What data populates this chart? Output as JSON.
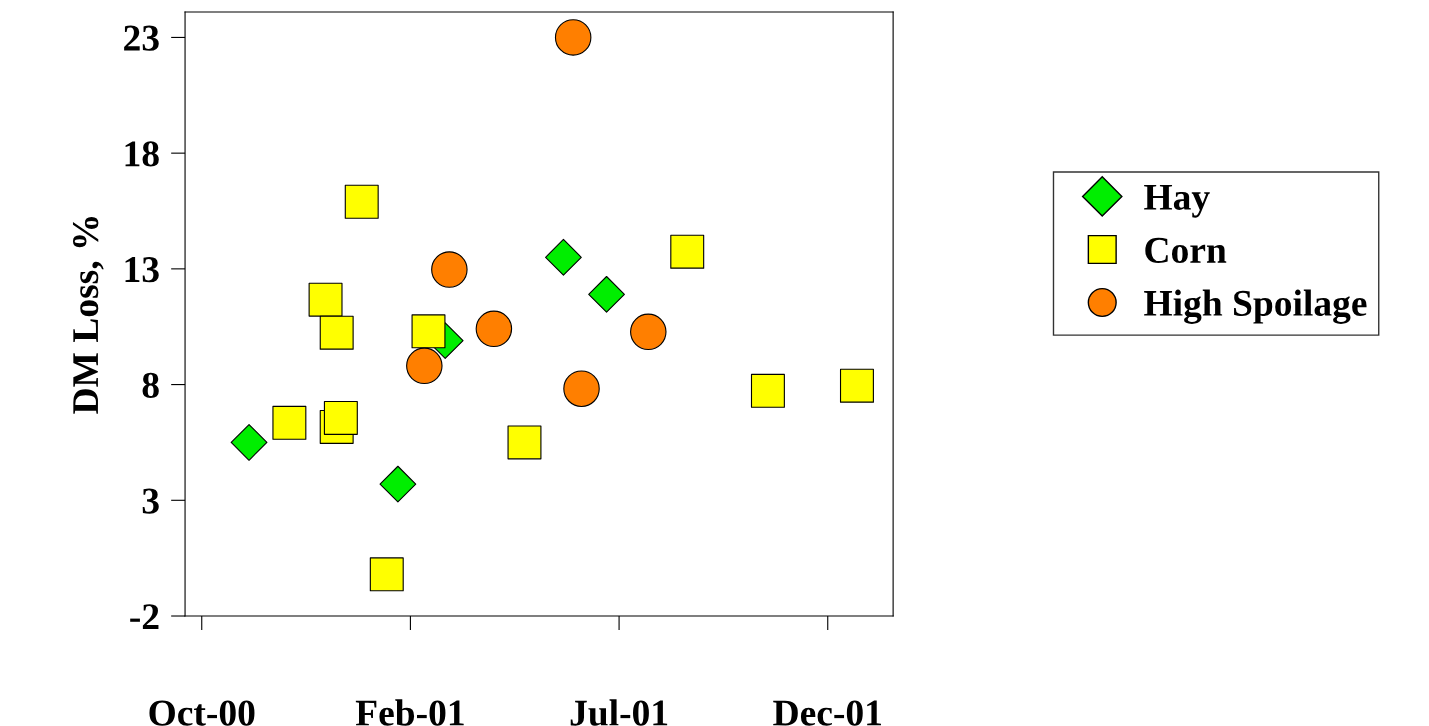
{
  "chart_data": {
    "type": "scatter",
    "ylabel": "DM Loss, %",
    "xlim": [
      "2000-09-19",
      "2002-02-10"
    ],
    "ylim": [
      -2,
      24.1
    ],
    "xticks": [
      {
        "value": "2000-10-01",
        "label": "Oct-00"
      },
      {
        "value": "2001-02-28",
        "label": "Feb-01"
      },
      {
        "value": "2001-07-28",
        "label": "Jul-01"
      },
      {
        "value": "2001-12-25",
        "label": "Dec-01"
      }
    ],
    "yticks": [
      -2,
      3,
      8,
      13,
      18,
      23
    ],
    "grid": false,
    "legend": "right",
    "series": [
      {
        "name": "Hay",
        "color": "#00ee00",
        "marker": "diamond",
        "x": [
          "2000-11-04",
          "2001-02-19",
          "2001-03-25",
          "2001-06-18",
          "2001-07-19"
        ],
        "values": [
          5.5,
          3.7,
          9.9,
          13.5,
          11.9
        ]
      },
      {
        "name": "Corn",
        "color": "#ffff00",
        "marker": "square",
        "x": [
          "2000-12-03",
          "2001-01-06",
          "2001-01-09",
          "2000-12-29",
          "2001-01-06",
          "2001-01-24",
          "2001-02-11",
          "2001-03-13",
          "2001-05-21",
          "2001-09-15",
          "2001-11-12",
          "2002-01-15"
        ],
        "values": [
          6.35,
          6.17,
          6.56,
          11.67,
          10.24,
          15.9,
          -0.2,
          10.3,
          5.5,
          13.74,
          7.73,
          7.95
        ]
      },
      {
        "name": "High Spoilage",
        "color": "#ff7f00",
        "marker": "circle",
        "x": [
          "2001-06-25",
          "2001-03-28",
          "2001-04-29",
          "2001-03-10",
          "2001-07-01",
          "2001-08-18"
        ],
        "values": [
          23.0,
          12.97,
          10.41,
          8.81,
          7.82,
          10.28
        ]
      }
    ]
  }
}
